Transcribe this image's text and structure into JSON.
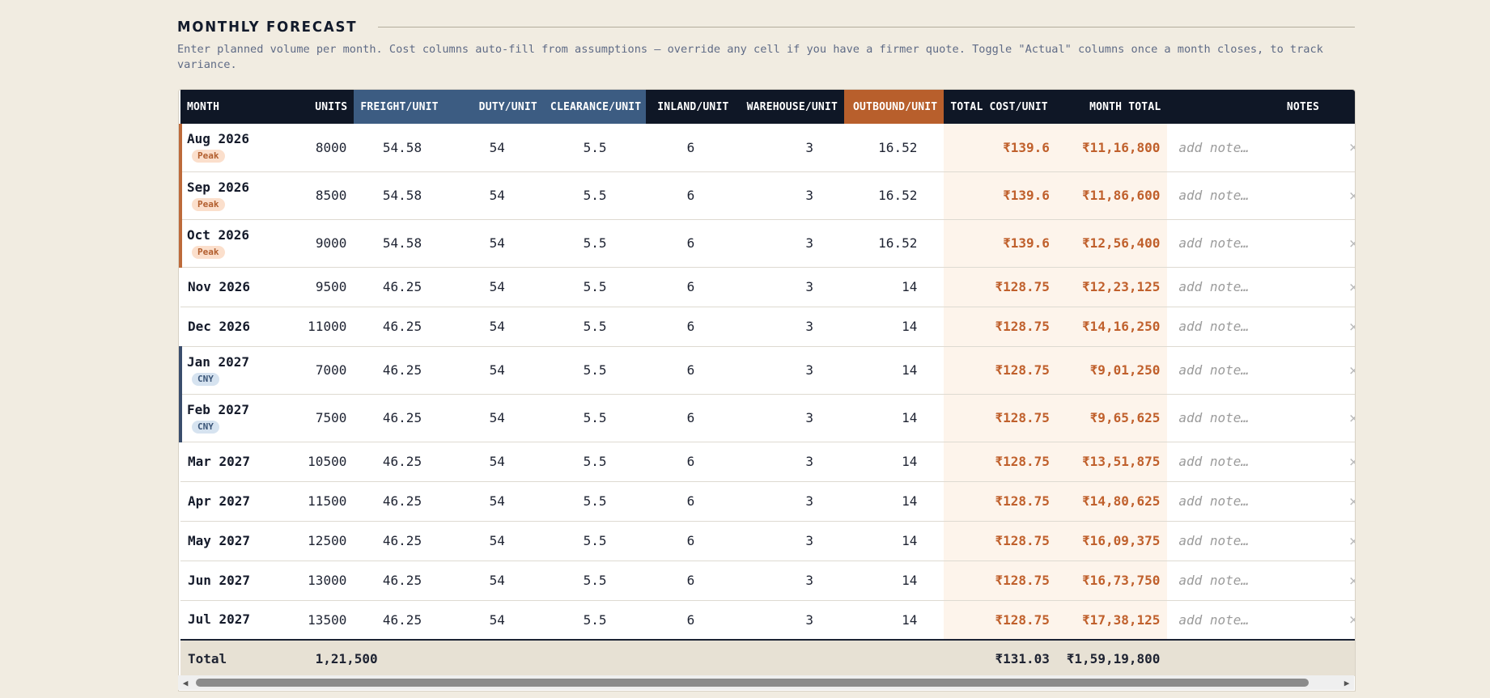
{
  "section": {
    "title": "MONTHLY FORECAST",
    "intro": "Enter planned volume per month. Cost columns auto-fill from assumptions — override any cell if you have a firmer quote. Toggle \"Actual\" columns once a month closes, to track variance."
  },
  "table": {
    "headers": {
      "month": "MONTH",
      "units": "UNITS",
      "freight": "FREIGHT/UNIT",
      "duty": "DUTY/UNIT",
      "clearance": "CLEARANCE/UNIT",
      "inland": "INLAND/UNIT",
      "warehouse": "WAREHOUSE/UNIT",
      "outbound": "OUTBOUND/UNIT",
      "total_cost": "TOTAL COST/UNIT",
      "month_total": "MONTH TOTAL",
      "notes": "NOTES"
    },
    "rows": [
      {
        "month": "Aug 2026",
        "tag": "Peak",
        "units": "8000",
        "freight": "54.58",
        "duty": "54",
        "clearance": "5.5",
        "inland": "6",
        "warehouse": "3",
        "outbound": "16.52",
        "total_cost": "₹139.6",
        "month_total": "₹11,16,800",
        "note_placeholder": "add note…"
      },
      {
        "month": "Sep 2026",
        "tag": "Peak",
        "units": "8500",
        "freight": "54.58",
        "duty": "54",
        "clearance": "5.5",
        "inland": "6",
        "warehouse": "3",
        "outbound": "16.52",
        "total_cost": "₹139.6",
        "month_total": "₹11,86,600",
        "note_placeholder": "add note…"
      },
      {
        "month": "Oct 2026",
        "tag": "Peak",
        "units": "9000",
        "freight": "54.58",
        "duty": "54",
        "clearance": "5.5",
        "inland": "6",
        "warehouse": "3",
        "outbound": "16.52",
        "total_cost": "₹139.6",
        "month_total": "₹12,56,400",
        "note_placeholder": "add note…"
      },
      {
        "month": "Nov 2026",
        "tag": "",
        "units": "9500",
        "freight": "46.25",
        "duty": "54",
        "clearance": "5.5",
        "inland": "6",
        "warehouse": "3",
        "outbound": "14",
        "total_cost": "₹128.75",
        "month_total": "₹12,23,125",
        "note_placeholder": "add note…"
      },
      {
        "month": "Dec 2026",
        "tag": "",
        "units": "11000",
        "freight": "46.25",
        "duty": "54",
        "clearance": "5.5",
        "inland": "6",
        "warehouse": "3",
        "outbound": "14",
        "total_cost": "₹128.75",
        "month_total": "₹14,16,250",
        "note_placeholder": "add note…"
      },
      {
        "month": "Jan 2027",
        "tag": "CNY",
        "units": "7000",
        "freight": "46.25",
        "duty": "54",
        "clearance": "5.5",
        "inland": "6",
        "warehouse": "3",
        "outbound": "14",
        "total_cost": "₹128.75",
        "month_total": "₹9,01,250",
        "note_placeholder": "add note…"
      },
      {
        "month": "Feb 2027",
        "tag": "CNY",
        "units": "7500",
        "freight": "46.25",
        "duty": "54",
        "clearance": "5.5",
        "inland": "6",
        "warehouse": "3",
        "outbound": "14",
        "total_cost": "₹128.75",
        "month_total": "₹9,65,625",
        "note_placeholder": "add note…"
      },
      {
        "month": "Mar 2027",
        "tag": "",
        "units": "10500",
        "freight": "46.25",
        "duty": "54",
        "clearance": "5.5",
        "inland": "6",
        "warehouse": "3",
        "outbound": "14",
        "total_cost": "₹128.75",
        "month_total": "₹13,51,875",
        "note_placeholder": "add note…"
      },
      {
        "month": "Apr 2027",
        "tag": "",
        "units": "11500",
        "freight": "46.25",
        "duty": "54",
        "clearance": "5.5",
        "inland": "6",
        "warehouse": "3",
        "outbound": "14",
        "total_cost": "₹128.75",
        "month_total": "₹14,80,625",
        "note_placeholder": "add note…"
      },
      {
        "month": "May 2027",
        "tag": "",
        "units": "12500",
        "freight": "46.25",
        "duty": "54",
        "clearance": "5.5",
        "inland": "6",
        "warehouse": "3",
        "outbound": "14",
        "total_cost": "₹128.75",
        "month_total": "₹16,09,375",
        "note_placeholder": "add note…"
      },
      {
        "month": "Jun 2027",
        "tag": "",
        "units": "13000",
        "freight": "46.25",
        "duty": "54",
        "clearance": "5.5",
        "inland": "6",
        "warehouse": "3",
        "outbound": "14",
        "total_cost": "₹128.75",
        "month_total": "₹16,73,750",
        "note_placeholder": "add note…"
      },
      {
        "month": "Jul 2027",
        "tag": "",
        "units": "13500",
        "freight": "46.25",
        "duty": "54",
        "clearance": "5.5",
        "inland": "6",
        "warehouse": "3",
        "outbound": "14",
        "total_cost": "₹128.75",
        "month_total": "₹17,38,125",
        "note_placeholder": "add note…"
      }
    ],
    "totals": {
      "label": "Total",
      "units": "1,21,500",
      "total_cost": "₹131.03",
      "month_total": "₹1,59,19,800"
    }
  },
  "icons": {
    "remove_row": "x-icon",
    "scroll_left": "caret-left-icon",
    "scroll_right": "caret-right-icon"
  },
  "colors": {
    "header_dark": "#0f1726",
    "header_blue": "#3c5c82",
    "header_orange": "#b85f2c",
    "accent_orange": "#c0602c",
    "peak_badge_bg": "#fbdfcc",
    "cny_badge_bg": "#d6e3f0",
    "page_bg": "#f1ece1"
  }
}
